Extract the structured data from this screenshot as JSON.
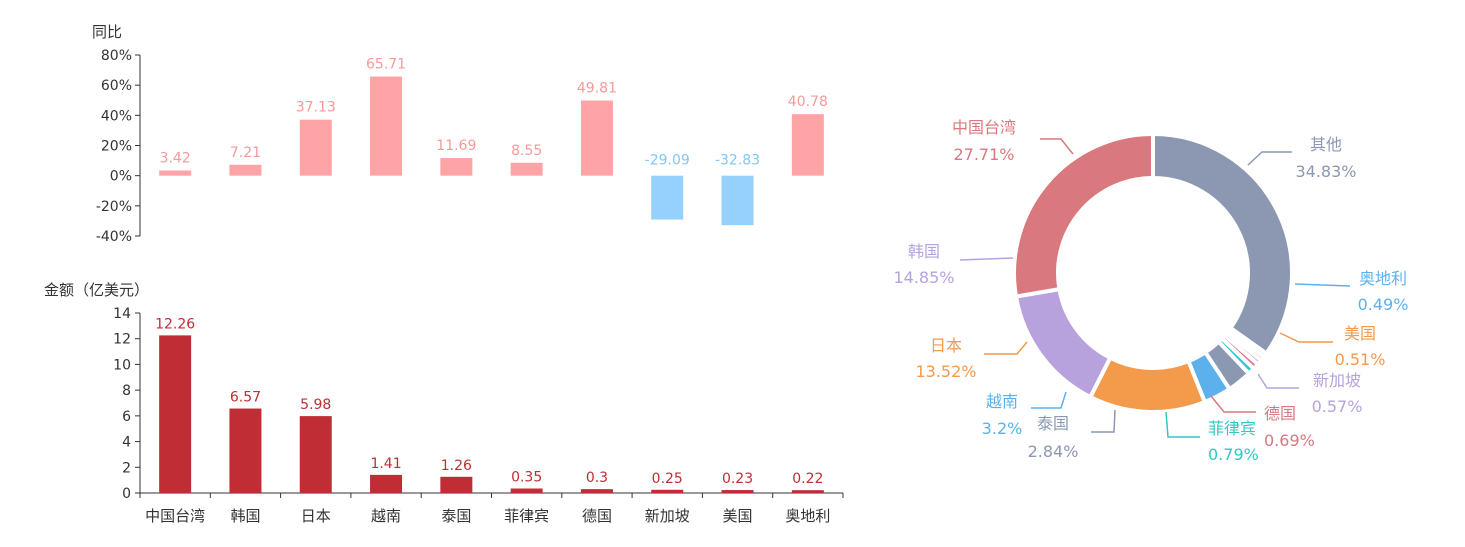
{
  "chart_data": [
    {
      "type": "bar",
      "ylabel": "同比",
      "ylim": [
        -40,
        80
      ],
      "yticks": [
        "80%",
        "60%",
        "40%",
        "20%",
        "0%",
        "-20%",
        "-40%"
      ],
      "categories": [
        "中国台湾",
        "韩国",
        "日本",
        "越南",
        "泰国",
        "菲律宾",
        "德国",
        "新加坡",
        "美国",
        "奥地利"
      ],
      "values": [
        3.42,
        7.21,
        37.13,
        65.71,
        11.69,
        8.55,
        49.81,
        -29.09,
        -32.83,
        40.78
      ],
      "labels": [
        "3.42",
        "7.21",
        "37.13",
        "65.71",
        "11.69",
        "8.55",
        "49.81",
        "-29.09",
        "-32.83",
        "40.78"
      ],
      "colors": {
        "positive": "#ffa4a6",
        "negative": "#96d1fd",
        "label_positive": "#f79999",
        "label_negative": "#82c6f5"
      }
    },
    {
      "type": "bar",
      "ylabel": "金额（亿美元）",
      "ylim": [
        0,
        14
      ],
      "yticks": [
        "14",
        "12",
        "10",
        "8",
        "6",
        "4",
        "2",
        "0"
      ],
      "categories": [
        "中国台湾",
        "韩国",
        "日本",
        "越南",
        "泰国",
        "菲律宾",
        "德国",
        "新加坡",
        "美国",
        "奥地利"
      ],
      "values": [
        12.26,
        6.57,
        5.98,
        1.41,
        1.26,
        0.35,
        0.3,
        0.25,
        0.23,
        0.22
      ],
      "labels": [
        "12.26",
        "6.57",
        "5.98",
        "1.41",
        "1.26",
        "0.35",
        "0.3",
        "0.25",
        "0.23",
        "0.22"
      ],
      "colors": {
        "bar": "#c02d35",
        "label": "#c02d35"
      }
    },
    {
      "type": "pie",
      "variant": "donut",
      "slices": [
        {
          "name": "其他",
          "value": 34.83,
          "label": "34.83%",
          "color": "#8c98b2"
        },
        {
          "name": "奥地利",
          "value": 0.49,
          "label": "0.49%",
          "color": "#5cb1ec"
        },
        {
          "name": "美国",
          "value": 0.51,
          "label": "0.51%",
          "color": "#f39a4b"
        },
        {
          "name": "新加坡",
          "value": 0.57,
          "label": "0.57%",
          "color": "#b7a2dd"
        },
        {
          "name": "德国",
          "value": 0.69,
          "label": "0.69%",
          "color": "#d9787e"
        },
        {
          "name": "菲律宾",
          "value": 0.79,
          "label": "0.79%",
          "color": "#2fc8c8"
        },
        {
          "name": "泰国",
          "value": 2.84,
          "label": "2.84%",
          "color": "#8c98b2"
        },
        {
          "name": "越南",
          "value": 3.2,
          "label": "3.2%",
          "color": "#5cb1ec"
        },
        {
          "name": "日本",
          "value": 13.52,
          "label": "13.52%",
          "color": "#f39a4b"
        },
        {
          "name": "韩国",
          "value": 14.85,
          "label": "14.85%",
          "color": "#b7a2dd"
        },
        {
          "name": "中国台湾",
          "value": 27.71,
          "label": "27.71%",
          "color": "#d9787e"
        }
      ]
    }
  ]
}
